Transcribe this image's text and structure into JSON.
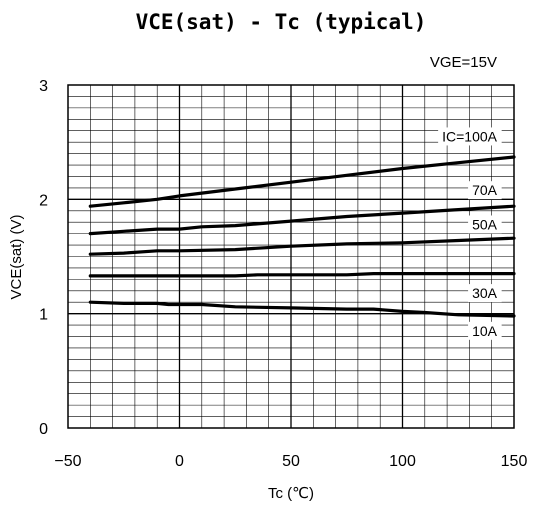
{
  "chart_data": {
    "type": "line",
    "title": "VCE(sat) - Tc (typical)",
    "condition": "VGE=15V",
    "xlabel": "Tc (℃)",
    "ylabel": "VCE(sat) (V)",
    "xlim": [
      -50,
      150
    ],
    "ylim": [
      0,
      3
    ],
    "x_major_ticks": [
      -50,
      0,
      50,
      100,
      150
    ],
    "x_tick_labels": [
      "−50",
      "0",
      "50",
      "100",
      "150"
    ],
    "x_minor_step": 10,
    "y_major_ticks": [
      0,
      1,
      2,
      3
    ],
    "y_tick_labels": [
      "0",
      "1",
      "2",
      "3"
    ],
    "y_minor_step": 0.1,
    "grid": true,
    "series": [
      {
        "name": "IC=100A",
        "x": [
          -40,
          -25,
          -10,
          0,
          25,
          50,
          75,
          100,
          125,
          150
        ],
        "y": [
          1.94,
          1.97,
          2.0,
          2.03,
          2.09,
          2.15,
          2.21,
          2.27,
          2.32,
          2.37
        ]
      },
      {
        "name": "70A",
        "x": [
          -40,
          -25,
          -10,
          0,
          10,
          25,
          50,
          75,
          100,
          125,
          150
        ],
        "y": [
          1.7,
          1.72,
          1.74,
          1.74,
          1.76,
          1.77,
          1.81,
          1.85,
          1.88,
          1.91,
          1.94
        ]
      },
      {
        "name": "50A",
        "x": [
          -40,
          -25,
          -10,
          0,
          25,
          50,
          75,
          100,
          125,
          150
        ],
        "y": [
          1.52,
          1.53,
          1.55,
          1.55,
          1.56,
          1.59,
          1.61,
          1.62,
          1.64,
          1.66
        ]
      },
      {
        "name": "30A",
        "x": [
          -40,
          -25,
          0,
          25,
          35,
          50,
          75,
          87,
          100,
          125,
          150
        ],
        "y": [
          1.33,
          1.33,
          1.33,
          1.33,
          1.34,
          1.34,
          1.34,
          1.35,
          1.35,
          1.35,
          1.35
        ]
      },
      {
        "name": "10A",
        "x": [
          -40,
          -25,
          -15,
          -10,
          -5,
          0,
          10,
          25,
          50,
          75,
          87,
          100,
          110,
          125,
          150
        ],
        "y": [
          1.1,
          1.09,
          1.09,
          1.09,
          1.08,
          1.08,
          1.08,
          1.06,
          1.05,
          1.04,
          1.04,
          1.02,
          1.01,
          0.99,
          0.98
        ]
      }
    ],
    "legend": "inline labels near the right end of each curve"
  }
}
